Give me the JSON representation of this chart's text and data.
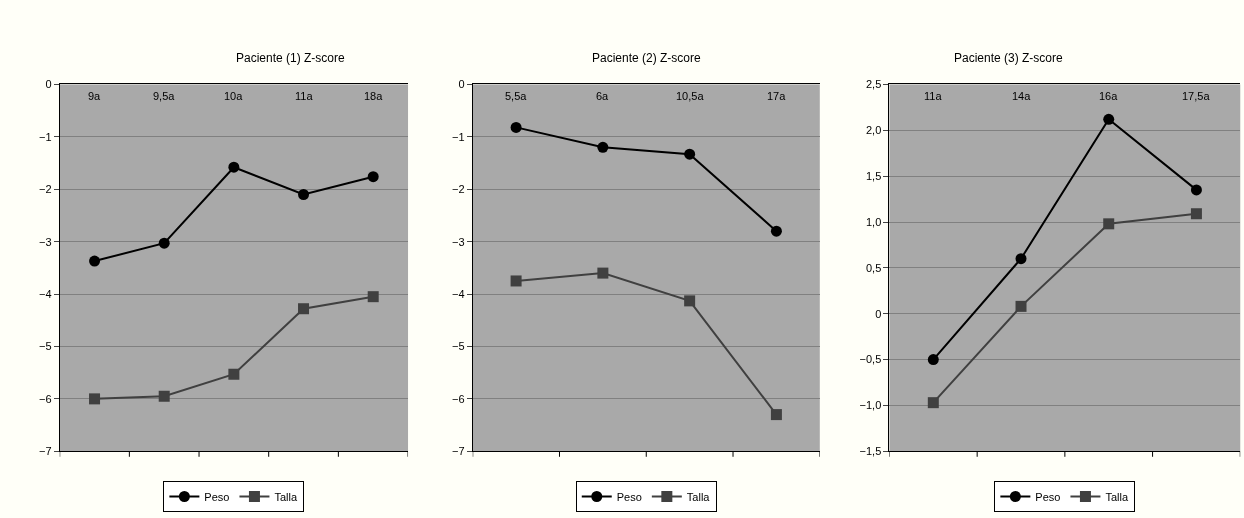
{
  "chart_data": [
    {
      "type": "line",
      "title": "Paciente (1) Z-score",
      "categories": [
        "9a",
        "9,5a",
        "10a",
        "11a",
        "18a"
      ],
      "series": [
        {
          "name": "Peso",
          "color": "#000000",
          "marker": "circle",
          "values": [
            -3.37,
            -3.03,
            -1.58,
            -2.1,
            -1.76
          ]
        },
        {
          "name": "Talla",
          "color": "#404040",
          "marker": "square",
          "values": [
            -6.0,
            -5.95,
            -5.53,
            -4.28,
            -4.05
          ]
        }
      ],
      "ylim": [
        -7,
        0
      ],
      "yticks": [
        {
          "value": -7,
          "label": "−7"
        },
        {
          "value": -6,
          "label": "−6"
        },
        {
          "value": -5,
          "label": "−5"
        },
        {
          "value": -4,
          "label": "−4"
        },
        {
          "value": -3,
          "label": "−3"
        },
        {
          "value": -2,
          "label": "−2"
        },
        {
          "value": -1,
          "label": "−1"
        },
        0
      ],
      "grid": "y",
      "legend": "bottom",
      "line_style": "solid"
    },
    {
      "type": "line",
      "title": "Paciente (2) Z-score",
      "categories": [
        "5,5a",
        "6a",
        "10,5a",
        "17a"
      ],
      "series": [
        {
          "name": "Peso",
          "color": "#000000",
          "marker": "circle",
          "values": [
            -0.82,
            -1.2,
            -1.33,
            -2.8
          ]
        },
        {
          "name": "Talla",
          "color": "#404040",
          "marker": "square",
          "values": [
            -3.75,
            -3.6,
            -4.13,
            -6.3
          ]
        }
      ],
      "ylim": [
        -7,
        0
      ],
      "yticks": [
        {
          "value": -7,
          "label": "−7"
        },
        {
          "value": -6,
          "label": "−6"
        },
        {
          "value": -5,
          "label": "−5"
        },
        {
          "value": -4,
          "label": "−4"
        },
        {
          "value": -3,
          "label": "−3"
        },
        {
          "value": -2,
          "label": "−2"
        },
        {
          "value": -1,
          "label": "−1"
        },
        0
      ],
      "grid": "y",
      "legend": "bottom",
      "line_style": "solid"
    },
    {
      "type": "line",
      "title": "Paciente (3) Z-score",
      "categories": [
        "11a",
        "14a",
        "16a",
        "17,5a"
      ],
      "series": [
        {
          "name": "Peso",
          "color": "#000000",
          "marker": "circle",
          "values": [
            -0.5,
            0.6,
            2.12,
            1.35
          ]
        },
        {
          "name": "Talla",
          "color": "#404040",
          "marker": "square",
          "values": [
            -0.97,
            0.08,
            0.98,
            1.09
          ]
        }
      ],
      "ylim": [
        -1.5,
        2.5
      ],
      "yticks": [
        {
          "value": -1.5,
          "label": "−1,5"
        },
        {
          "value": -1.0,
          "label": "−1,0"
        },
        {
          "value": -0.5,
          "label": "−0,5"
        },
        0,
        {
          "value": 0.5,
          "label": "0,5"
        },
        {
          "value": 1.0,
          "label": "1,0"
        },
        {
          "value": 1.5,
          "label": "1,5"
        },
        {
          "value": 2.0,
          "label": "2,0"
        },
        {
          "value": 2.5,
          "label": "2,5"
        }
      ],
      "grid": "y",
      "legend": "bottom",
      "line_style": "solid"
    }
  ]
}
